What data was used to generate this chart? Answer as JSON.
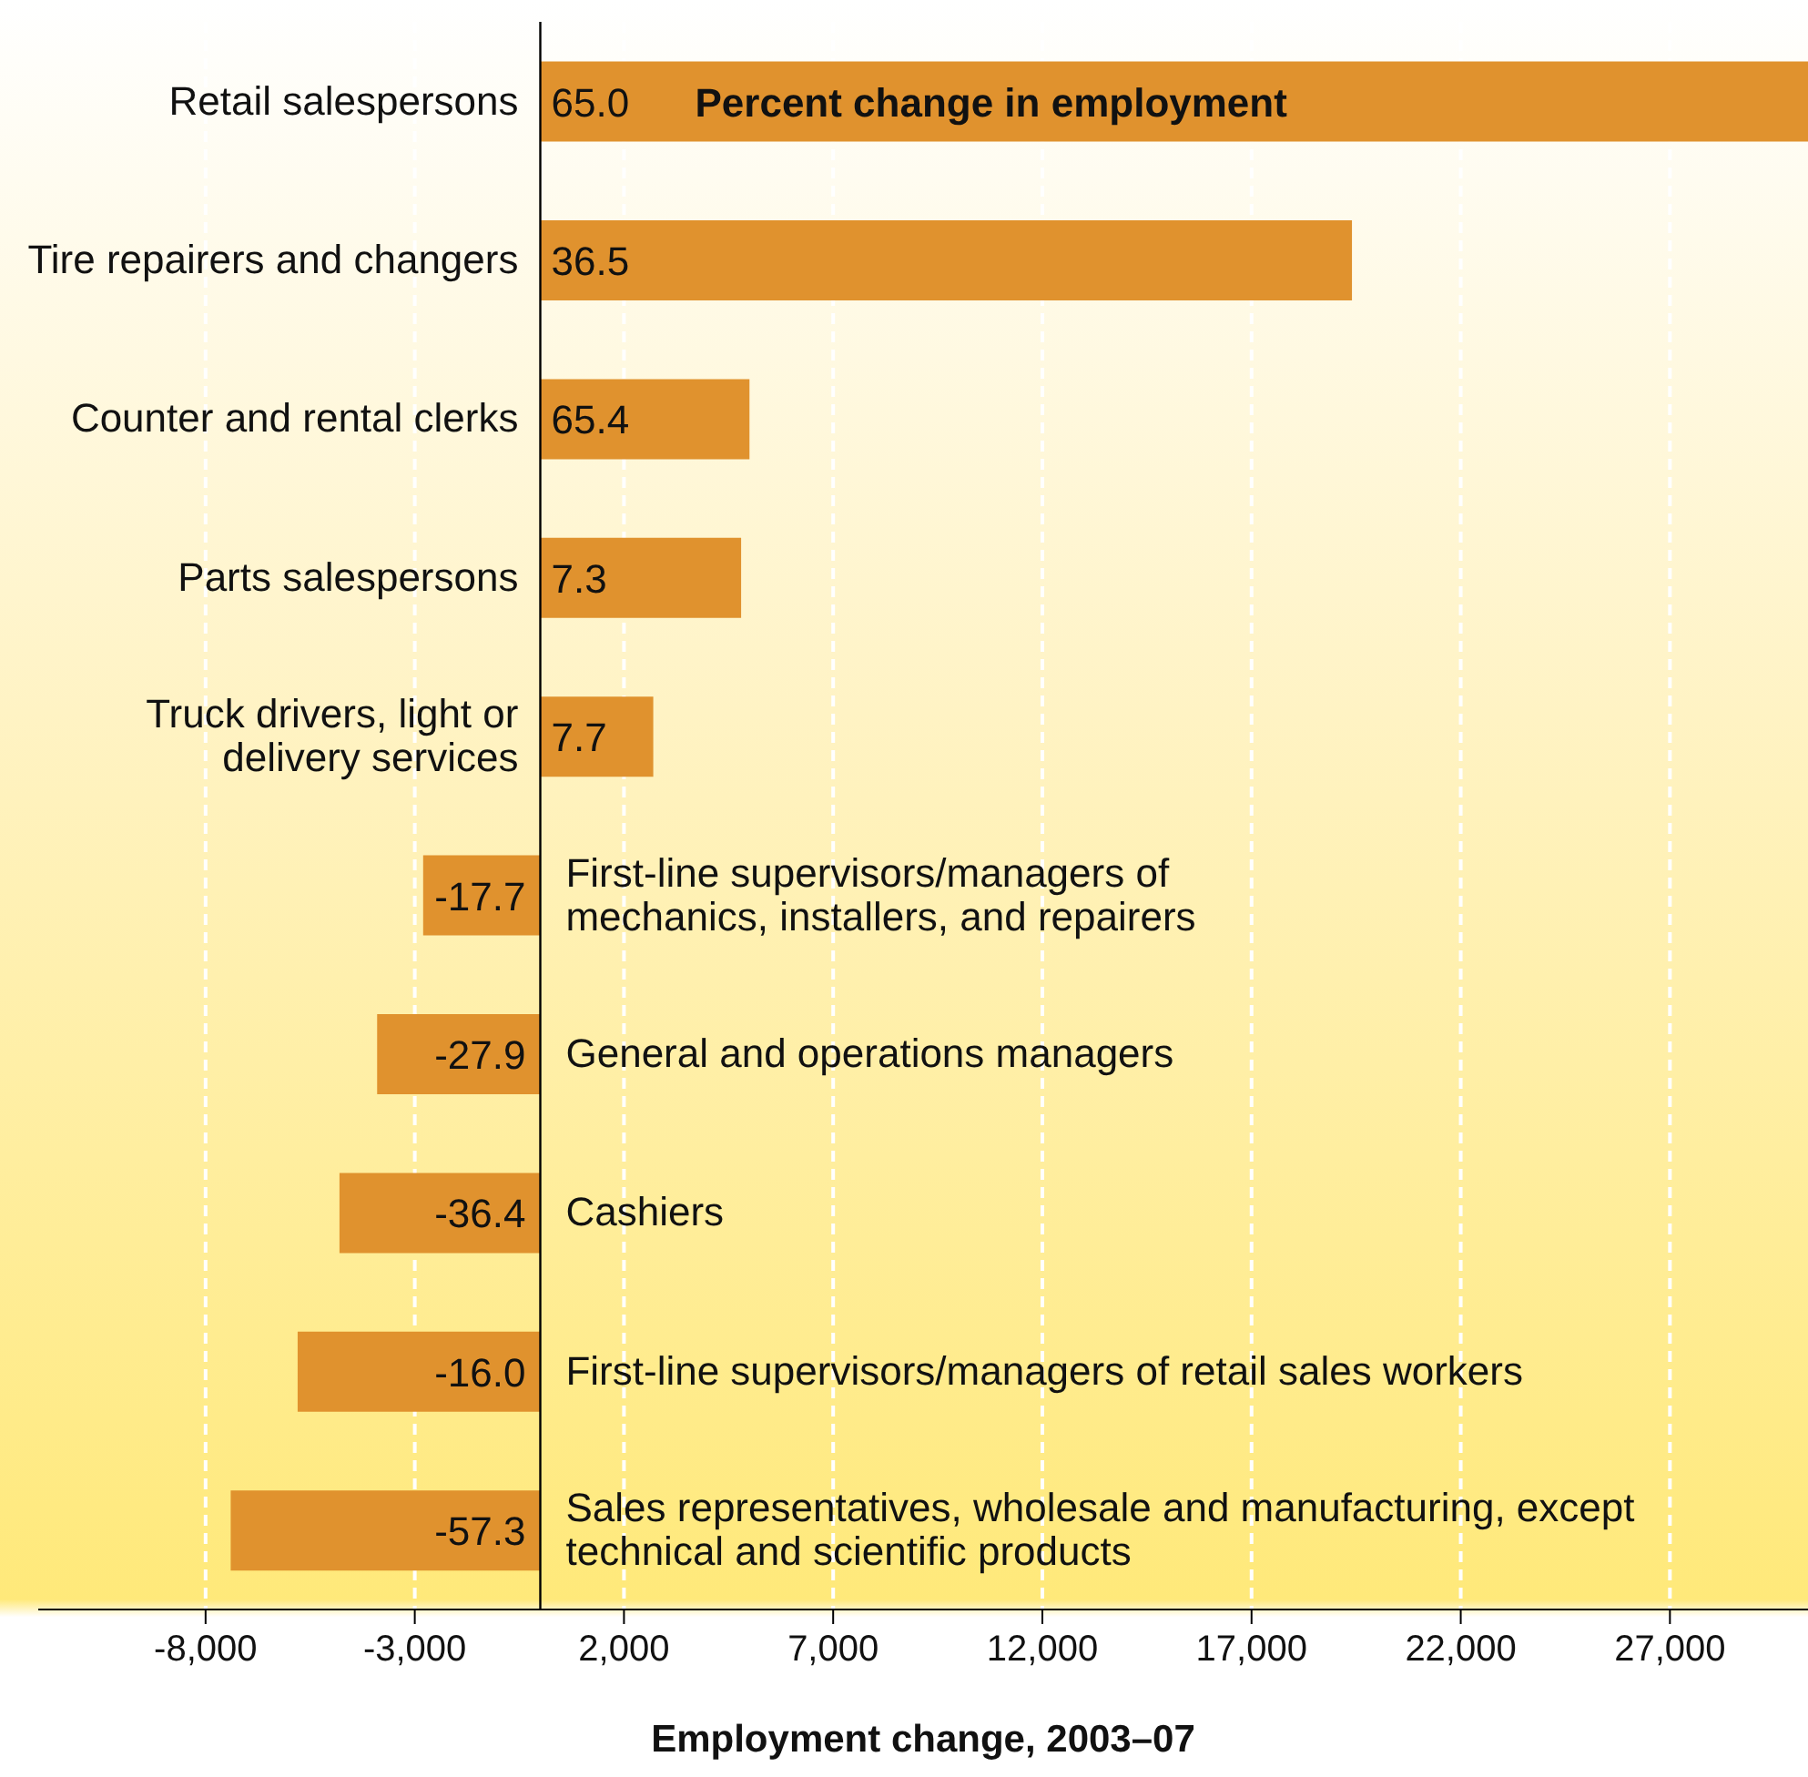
{
  "chart_data": {
    "type": "bar",
    "orientation": "horizontal",
    "xlabel": "Employment change, 2003–07",
    "categories": [
      "Retail salespersons",
      "Tire repairers and changers",
      "Counter and rental clerks",
      "Parts salespersons",
      "Truck drivers, light or\ndelivery services",
      "First-line supervisors/managers of\nmechanics, installers, and repairers",
      "General and operations managers",
      "Cashiers",
      "First-line supervisors/managers of retail sales workers",
      "Sales representatives, wholesale and manufacturing, except\ntechnical and scientific products"
    ],
    "values": [
      30300,
      19400,
      5000,
      4800,
      2700,
      -2800,
      -3900,
      -4800,
      -5800,
      -7400
    ],
    "color": "#e0922e",
    "annotations": [
      "Percent change in employment",
      "65.0",
      "36.5",
      "65.4",
      "7.3",
      "7.7",
      "-17.7",
      "-27.9",
      "-36.4",
      "-16.0",
      "-57.3"
    ],
    "xlim": [
      -12000,
      30300
    ],
    "xticks": [
      {
        "value": -8000,
        "label": "-8,000"
      },
      {
        "value": -3000,
        "label": "-3,000"
      },
      {
        "value": 2000,
        "label": "2,000"
      },
      {
        "value": 7000,
        "label": "7,000"
      },
      {
        "value": 12000,
        "label": "12,000"
      },
      {
        "value": 17000,
        "label": "17,000"
      },
      {
        "value": 22000,
        "label": "22,000"
      },
      {
        "value": 27000,
        "label": "27,000"
      }
    ],
    "grid": "x"
  }
}
